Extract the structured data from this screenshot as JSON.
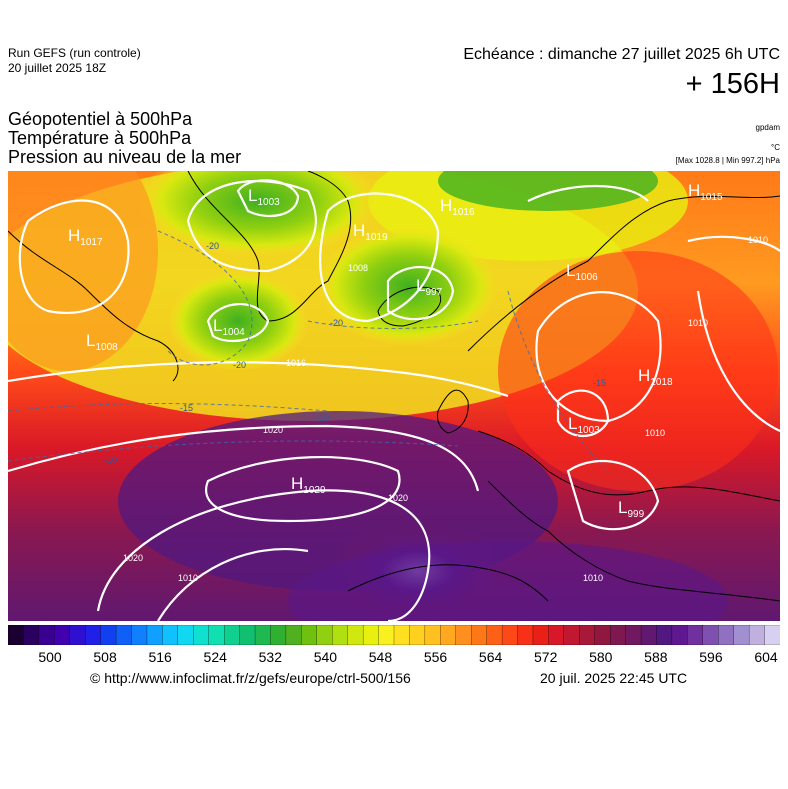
{
  "header": {
    "run_name": "Run GEFS (run controle)",
    "run_date": "20 juillet 2025 18Z",
    "echeance": "Echéance : dimanche 27 juillet 2025 6h UTC",
    "horizon": "+ 156H"
  },
  "parameters": [
    "Géopotentiel à 500hPa",
    "Température à 500hPa",
    "Pression au niveau de la mer"
  ],
  "units": {
    "geopotential": "gpdam",
    "temperature": "°C",
    "pressure": "[Max 1028.8 | Min 997.2] hPa"
  },
  "map": {
    "pressure_centers": [
      {
        "type": "H",
        "value": "1017"
      },
      {
        "type": "L",
        "value": "1003"
      },
      {
        "type": "H",
        "value": "1019"
      },
      {
        "type": "H",
        "value": "1016"
      },
      {
        "type": "H",
        "value": "1015"
      },
      {
        "type": "L",
        "value": "997"
      },
      {
        "type": "L",
        "value": "1004"
      },
      {
        "type": "L",
        "value": "1008"
      },
      {
        "type": "L",
        "value": "1006"
      },
      {
        "type": "H",
        "value": "1018"
      },
      {
        "type": "L",
        "value": "1003"
      },
      {
        "type": "H",
        "value": "1029"
      },
      {
        "type": "L",
        "value": "999"
      }
    ],
    "isobar_labels": [
      "1010",
      "1020",
      "1020",
      "1020",
      "1010",
      "1010",
      "1010",
      "1010",
      "1016",
      "1008"
    ],
    "isotherm_labels": [
      "-20",
      "-20",
      "-20",
      "-15",
      "-10",
      "-10",
      "-15"
    ]
  },
  "scale": {
    "colors": [
      "#1a0030",
      "#2a0060",
      "#3a0090",
      "#4000b0",
      "#3010d0",
      "#2020e8",
      "#1040f0",
      "#1060f8",
      "#1080ff",
      "#10a0ff",
      "#10c0ff",
      "#10d8f0",
      "#10e0d0",
      "#10e0b0",
      "#10d090",
      "#10c070",
      "#20b850",
      "#30b030",
      "#50b020",
      "#70c010",
      "#90d010",
      "#b0e010",
      "#d0e810",
      "#e8f010",
      "#f8f020",
      "#ffe020",
      "#ffd020",
      "#ffc020",
      "#ffa820",
      "#ff9020",
      "#ff7818",
      "#ff6018",
      "#ff4818",
      "#f83018",
      "#e82018",
      "#d81828",
      "#c01830",
      "#a81838",
      "#901840",
      "#801850",
      "#701860",
      "#601870",
      "#501880",
      "#601890",
      "#7030a0",
      "#8050b0",
      "#9070c0",
      "#a090d0",
      "#c0b0e0",
      "#d8d0f0"
    ],
    "ticks": [
      "500",
      "508",
      "516",
      "524",
      "532",
      "540",
      "548",
      "556",
      "564",
      "572",
      "580",
      "588",
      "596",
      "604"
    ]
  },
  "footer": {
    "credit": "© http://www.infoclimat.fr/z/gefs/europe/ctrl-500/156",
    "timestamp": "20 juil. 2025 22:45 UTC"
  }
}
